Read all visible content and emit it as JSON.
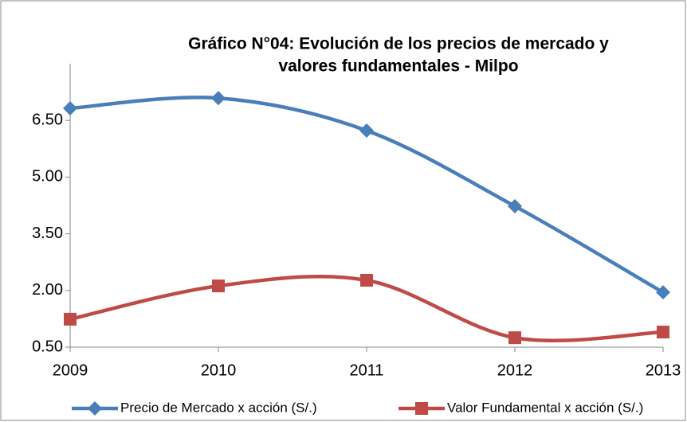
{
  "chart_data": {
    "type": "line",
    "title": [
      "Gráfico N°04: Evolución de los precios de mercado y",
      "valores fundamentales - Milpo"
    ],
    "categories": [
      "2009",
      "2010",
      "2011",
      "2012",
      "2013"
    ],
    "series": [
      {
        "name": "Precio de Mercado x acción (S/.)",
        "color": "#4a7ebb",
        "marker": "diamond",
        "values": [
          6.82,
          7.09,
          6.23,
          4.23,
          1.95
        ]
      },
      {
        "name": "Valor Fundamental x acción (S/.)",
        "color": "#be4b48",
        "marker": "square",
        "values": [
          1.24,
          2.12,
          2.27,
          0.75,
          0.9
        ]
      }
    ],
    "ylim": [
      0.5,
      8
    ],
    "yticks": [
      {
        "value": 0.5,
        "label": "0.50"
      },
      {
        "value": 2,
        "label": "2.00"
      },
      {
        "value": 3.5,
        "label": "3.50"
      },
      {
        "value": 5,
        "label": "5.00"
      },
      {
        "value": 6.5,
        "label": "6.50"
      }
    ],
    "grid": false,
    "legend": "bottom",
    "smooth": true
  }
}
